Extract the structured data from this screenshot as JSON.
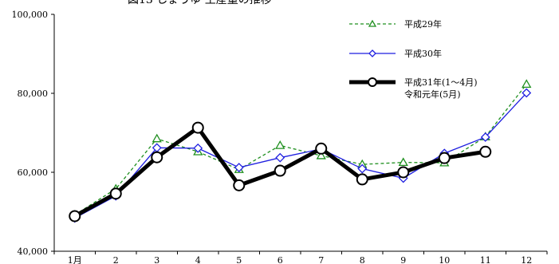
{
  "chart_data": {
    "type": "line",
    "title": "図13 しょうゆ 生産量の推移",
    "categories": [
      "1月",
      "2",
      "3",
      "4",
      "5",
      "6",
      "7",
      "8",
      "9",
      "10",
      "11",
      "12"
    ],
    "ylim": [
      40000,
      100000
    ],
    "yticks": [
      40000,
      60000,
      80000,
      100000
    ],
    "ytick_labels": [
      "40,000",
      "60,000",
      "80,000",
      "100,000"
    ],
    "grid": false,
    "legend_position": "top-right",
    "series": [
      {
        "name": "平成29年",
        "color": "#1f8f1f",
        "style": "dashed",
        "marker": "triangle",
        "values": [
          49200,
          55800,
          68500,
          65200,
          60700,
          66800,
          64200,
          62000,
          62500,
          62400,
          69000,
          82300
        ]
      },
      {
        "name": "平成30年",
        "color": "#1f1fe0",
        "style": "solid",
        "marker": "diamond",
        "values": [
          48400,
          54000,
          66200,
          66100,
          61200,
          63700,
          65900,
          60900,
          58500,
          64800,
          68900,
          80100
        ]
      },
      {
        "name": "平成31年(1～4月)\n令和元年(5月)",
        "name_lines": [
          "平成31年(1～4月)",
          "令和元年(5月)"
        ],
        "color": "#000000",
        "style": "bold",
        "marker": "circle",
        "values": [
          48900,
          54600,
          63800,
          71300,
          56700,
          60400,
          66000,
          58200,
          60000,
          63600,
          65200,
          null
        ]
      }
    ]
  }
}
